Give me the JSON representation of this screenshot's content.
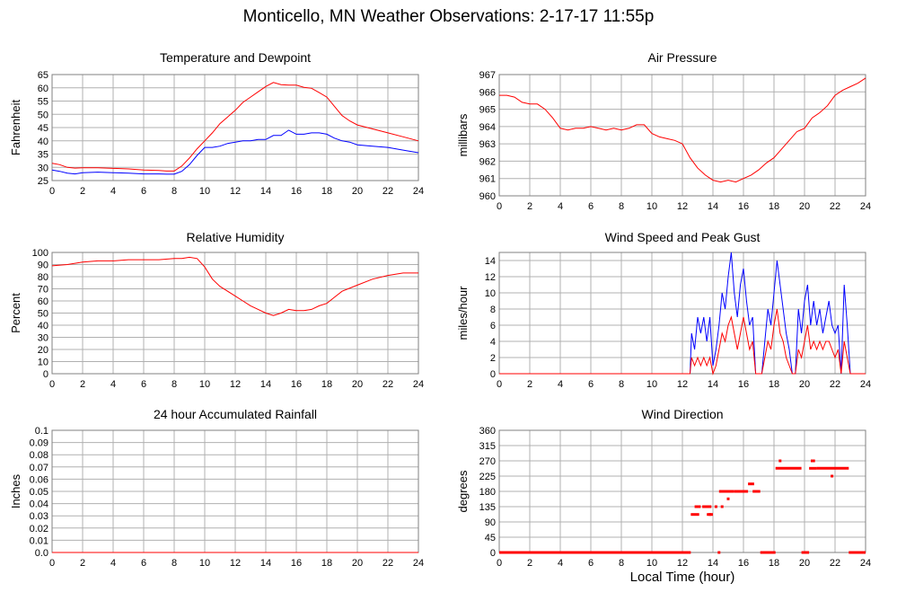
{
  "title": "Monticello, MN Weather Observations: 2-17-17 11:55p",
  "xlabel_shared": "Local Time (hour)",
  "colors": {
    "red": "#ff0000",
    "blue": "#0000ff",
    "grid": "#b0b0b0",
    "frame": "#808080"
  },
  "chart_data": [
    {
      "type": "line",
      "title": "Temperature and Dewpoint",
      "ylabel": "Fahrenheit",
      "xlim": [
        0,
        24
      ],
      "ylim": [
        25,
        65
      ],
      "xticks": [
        0,
        2,
        4,
        6,
        8,
        10,
        12,
        14,
        16,
        18,
        20,
        22,
        24
      ],
      "yticks": [
        25,
        30,
        35,
        40,
        45,
        50,
        55,
        60,
        65
      ],
      "grid": true,
      "series": [
        {
          "color": "#ff0000",
          "x": [
            0,
            0.5,
            1,
            1.5,
            2,
            3,
            4,
            5,
            6,
            7,
            7.5,
            8,
            8.5,
            9,
            9.5,
            10,
            10.5,
            11,
            11.5,
            12,
            12.5,
            13,
            13.5,
            14,
            14.5,
            15,
            15.5,
            16,
            16.5,
            17,
            17.5,
            18,
            18.5,
            19,
            19.5,
            20,
            21,
            22,
            23,
            24
          ],
          "values": [
            31.5,
            31.0,
            30.0,
            29.7,
            29.8,
            29.8,
            29.6,
            29.4,
            29.0,
            28.8,
            28.6,
            28.6,
            30.5,
            33.5,
            37.0,
            40.0,
            43.0,
            46.5,
            49.0,
            51.5,
            54.5,
            56.5,
            58.5,
            60.5,
            62.0,
            61.2,
            61.0,
            61.0,
            60.2,
            59.8,
            58.2,
            56.5,
            53.0,
            49.5,
            47.5,
            46.0,
            44.5,
            43.0,
            41.5,
            40.0
          ]
        },
        {
          "color": "#0000ff",
          "x": [
            0,
            0.5,
            1,
            1.5,
            2,
            3,
            4,
            5,
            6,
            7,
            7.5,
            8,
            8.5,
            9,
            9.5,
            10,
            10.5,
            11,
            11.5,
            12,
            12.5,
            13,
            13.5,
            14,
            14.5,
            15,
            15.5,
            16,
            16.5,
            17,
            17.5,
            18,
            18.5,
            19,
            19.5,
            20,
            21,
            22,
            23,
            24
          ],
          "values": [
            29.0,
            28.5,
            27.8,
            27.5,
            28.0,
            28.2,
            28.0,
            27.8,
            27.5,
            27.5,
            27.4,
            27.4,
            28.5,
            31.0,
            34.5,
            37.5,
            37.5,
            38.0,
            39.0,
            39.5,
            40.0,
            40.0,
            40.5,
            40.5,
            42.0,
            42.0,
            44.0,
            42.5,
            42.5,
            43.0,
            43.0,
            42.5,
            41.0,
            40.0,
            39.5,
            38.5,
            38.0,
            37.5,
            36.5,
            35.5
          ]
        }
      ]
    },
    {
      "type": "line",
      "title": "Air Pressure",
      "ylabel": "millibars",
      "xlim": [
        0,
        24
      ],
      "ylim": [
        960,
        967
      ],
      "xticks": [
        0,
        2,
        4,
        6,
        8,
        10,
        12,
        14,
        16,
        18,
        20,
        22,
        24
      ],
      "yticks": [
        960,
        961,
        962,
        963,
        964,
        965,
        966,
        967
      ],
      "grid": true,
      "series": [
        {
          "color": "#ff0000",
          "x": [
            0,
            0.5,
            1,
            1.5,
            2,
            2.5,
            3,
            3.5,
            4,
            4.5,
            5,
            5.5,
            6,
            6.5,
            7,
            7.5,
            8,
            8.5,
            9,
            9.5,
            10,
            10.5,
            11,
            11.5,
            12,
            12.5,
            13,
            13.5,
            14,
            14.5,
            15,
            15.5,
            16,
            16.5,
            17,
            17.5,
            18,
            18.5,
            19,
            19.5,
            20,
            20.5,
            21,
            21.5,
            22,
            22.5,
            23,
            23.5,
            24
          ],
          "values": [
            965.8,
            965.8,
            965.7,
            965.4,
            965.3,
            965.3,
            965.0,
            964.5,
            963.9,
            963.8,
            963.9,
            963.9,
            964.0,
            963.9,
            963.8,
            963.9,
            963.8,
            963.9,
            964.1,
            964.1,
            963.6,
            963.4,
            963.3,
            963.2,
            963.0,
            962.2,
            961.6,
            961.2,
            960.9,
            960.8,
            960.9,
            960.8,
            961.0,
            961.2,
            961.5,
            961.9,
            962.2,
            962.7,
            963.2,
            963.7,
            963.9,
            964.5,
            964.8,
            965.2,
            965.8,
            966.1,
            966.3,
            966.5,
            966.8
          ]
        }
      ]
    },
    {
      "type": "line",
      "title": "Relative Humidity",
      "ylabel": "Percent",
      "xlim": [
        0,
        24
      ],
      "ylim": [
        0,
        100
      ],
      "xticks": [
        0,
        2,
        4,
        6,
        8,
        10,
        12,
        14,
        16,
        18,
        20,
        22,
        24
      ],
      "yticks": [
        0,
        10,
        20,
        30,
        40,
        50,
        60,
        70,
        80,
        90,
        100
      ],
      "grid": true,
      "series": [
        {
          "color": "#ff0000",
          "x": [
            0,
            1,
            2,
            3,
            4,
            5,
            6,
            7,
            8,
            8.5,
            9,
            9.5,
            10,
            10.5,
            11,
            11.5,
            12,
            12.5,
            13,
            13.5,
            14,
            14.5,
            15,
            15.5,
            16,
            16.5,
            17,
            17.5,
            18,
            18.5,
            19,
            20,
            21,
            22,
            23,
            24
          ],
          "values": [
            89,
            90,
            92,
            93,
            93,
            94,
            94,
            94,
            95,
            95,
            96,
            95,
            88,
            78,
            72,
            68,
            64,
            60,
            56,
            53,
            50,
            48,
            50,
            53,
            52,
            52,
            53,
            56,
            58,
            63,
            68,
            73,
            78,
            81,
            83,
            83
          ]
        }
      ]
    },
    {
      "type": "line",
      "title": "Wind Speed and Peak Gust",
      "ylabel": "miles/hour",
      "xlim": [
        0,
        24
      ],
      "ylim": [
        0,
        15
      ],
      "xticks": [
        0,
        2,
        4,
        6,
        8,
        10,
        12,
        14,
        16,
        18,
        20,
        22,
        24
      ],
      "yticks": [
        0,
        2,
        4,
        6,
        8,
        10,
        12,
        14
      ],
      "grid": true,
      "series": [
        {
          "color": "#0000ff",
          "x": [
            0,
            12.5,
            12.6,
            12.8,
            13.0,
            13.2,
            13.4,
            13.6,
            13.8,
            14.0,
            14.2,
            14.4,
            14.6,
            14.8,
            15.0,
            15.2,
            15.4,
            15.6,
            15.8,
            16.0,
            16.2,
            16.4,
            16.6,
            16.8,
            17.0,
            17.2,
            17.4,
            17.6,
            17.8,
            18.0,
            18.2,
            18.4,
            18.6,
            18.8,
            19.0,
            19.2,
            19.4,
            19.6,
            19.8,
            20.0,
            20.2,
            20.4,
            20.6,
            20.8,
            21.0,
            21.2,
            21.4,
            21.6,
            21.8,
            22.0,
            22.2,
            22.4,
            22.6,
            22.8,
            23.0,
            24
          ],
          "values": [
            0,
            0,
            5,
            3,
            7,
            5,
            7,
            4,
            7,
            1,
            3,
            6,
            10,
            8,
            12,
            15,
            10,
            7,
            11,
            13,
            9,
            6,
            7,
            0,
            0,
            0,
            4,
            8,
            6,
            10,
            14,
            11,
            8,
            5,
            3,
            0,
            0,
            8,
            5,
            9,
            11,
            6,
            9,
            6,
            8,
            5,
            7,
            9,
            6,
            5,
            6,
            0,
            11,
            6,
            0,
            0
          ]
        },
        {
          "color": "#ff0000",
          "x": [
            0,
            12.5,
            12.6,
            12.8,
            13.0,
            13.2,
            13.4,
            13.6,
            13.8,
            14.0,
            14.2,
            14.4,
            14.6,
            14.8,
            15.0,
            15.2,
            15.4,
            15.6,
            15.8,
            16.0,
            16.2,
            16.4,
            16.6,
            16.8,
            17.0,
            17.2,
            17.4,
            17.6,
            17.8,
            18.0,
            18.2,
            18.4,
            18.6,
            18.8,
            19.0,
            19.2,
            19.4,
            19.6,
            19.8,
            20.0,
            20.2,
            20.4,
            20.6,
            20.8,
            21.0,
            21.2,
            21.4,
            21.6,
            21.8,
            22.0,
            22.2,
            22.4,
            22.6,
            22.8,
            23.0,
            24
          ],
          "values": [
            0,
            0,
            2,
            1,
            2,
            1,
            2,
            1,
            2,
            0,
            1,
            3,
            5,
            4,
            6,
            7,
            5,
            3,
            5,
            7,
            5,
            3,
            4,
            0,
            0,
            0,
            2,
            4,
            3,
            6,
            8,
            5,
            4,
            2,
            1,
            0,
            0,
            3,
            2,
            4,
            6,
            3,
            4,
            3,
            4,
            3,
            4,
            4,
            3,
            2,
            3,
            0,
            4,
            2,
            0,
            0
          ]
        }
      ]
    },
    {
      "type": "line",
      "title": "24 hour Accumulated Rainfall",
      "ylabel": "Inches",
      "xlim": [
        0,
        24
      ],
      "ylim": [
        0,
        0.1
      ],
      "xticks": [
        0,
        2,
        4,
        6,
        8,
        10,
        12,
        14,
        16,
        18,
        20,
        22,
        24
      ],
      "yticks": [
        "0.0",
        "0.01",
        "0.02",
        "0.03",
        "0.04",
        "0.05",
        "0.06",
        "0.07",
        "0.08",
        "0.09",
        "0.1"
      ],
      "grid": true,
      "series": [
        {
          "color": "#ff0000",
          "x": [
            0,
            24
          ],
          "values": [
            0,
            0
          ]
        }
      ]
    },
    {
      "type": "scatter",
      "title": "Wind Direction",
      "ylabel": "degrees",
      "xlabel": "Local Time (hour)",
      "xlim": [
        0,
        24
      ],
      "ylim": [
        0,
        360
      ],
      "xticks": [
        0,
        2,
        4,
        6,
        8,
        10,
        12,
        14,
        16,
        18,
        20,
        22,
        24
      ],
      "yticks": [
        0,
        45,
        90,
        135,
        180,
        225,
        270,
        315,
        360
      ],
      "grid": true,
      "series": [
        {
          "color": "#ff0000",
          "segments": [
            {
              "x0": 0,
              "x1": 12.55,
              "y": 0
            },
            {
              "x0": 12.55,
              "x1": 13.1,
              "y": 112
            },
            {
              "x0": 12.8,
              "x1": 13.2,
              "y": 135
            },
            {
              "x0": 13.3,
              "x1": 13.9,
              "y": 135
            },
            {
              "x0": 13.6,
              "x1": 14.0,
              "y": 112
            },
            {
              "x0": 14.4,
              "x1": 15.4,
              "y": 180
            },
            {
              "x0": 15.4,
              "x1": 16.3,
              "y": 180
            },
            {
              "x0": 16.3,
              "x1": 16.7,
              "y": 202
            },
            {
              "x0": 16.6,
              "x1": 17.1,
              "y": 180
            },
            {
              "x0": 17.1,
              "x1": 18.1,
              "y": 0
            },
            {
              "x0": 18.1,
              "x1": 19.8,
              "y": 248
            },
            {
              "x0": 19.8,
              "x1": 20.3,
              "y": 0
            },
            {
              "x0": 20.3,
              "x1": 20.8,
              "y": 248
            },
            {
              "x0": 20.8,
              "x1": 22.9,
              "y": 248
            },
            {
              "x0": 22.9,
              "x1": 24,
              "y": 0
            }
          ],
          "points": [
            {
              "x": 13.8,
              "y": 112
            },
            {
              "x": 14.2,
              "y": 135
            },
            {
              "x": 14.4,
              "y": 0
            },
            {
              "x": 15.0,
              "y": 158
            },
            {
              "x": 18.4,
              "y": 270
            },
            {
              "x": 20.5,
              "y": 270
            },
            {
              "x": 20.6,
              "y": 270
            },
            {
              "x": 21.8,
              "y": 225
            },
            {
              "x": 14.6,
              "y": 135
            }
          ]
        }
      ]
    }
  ]
}
